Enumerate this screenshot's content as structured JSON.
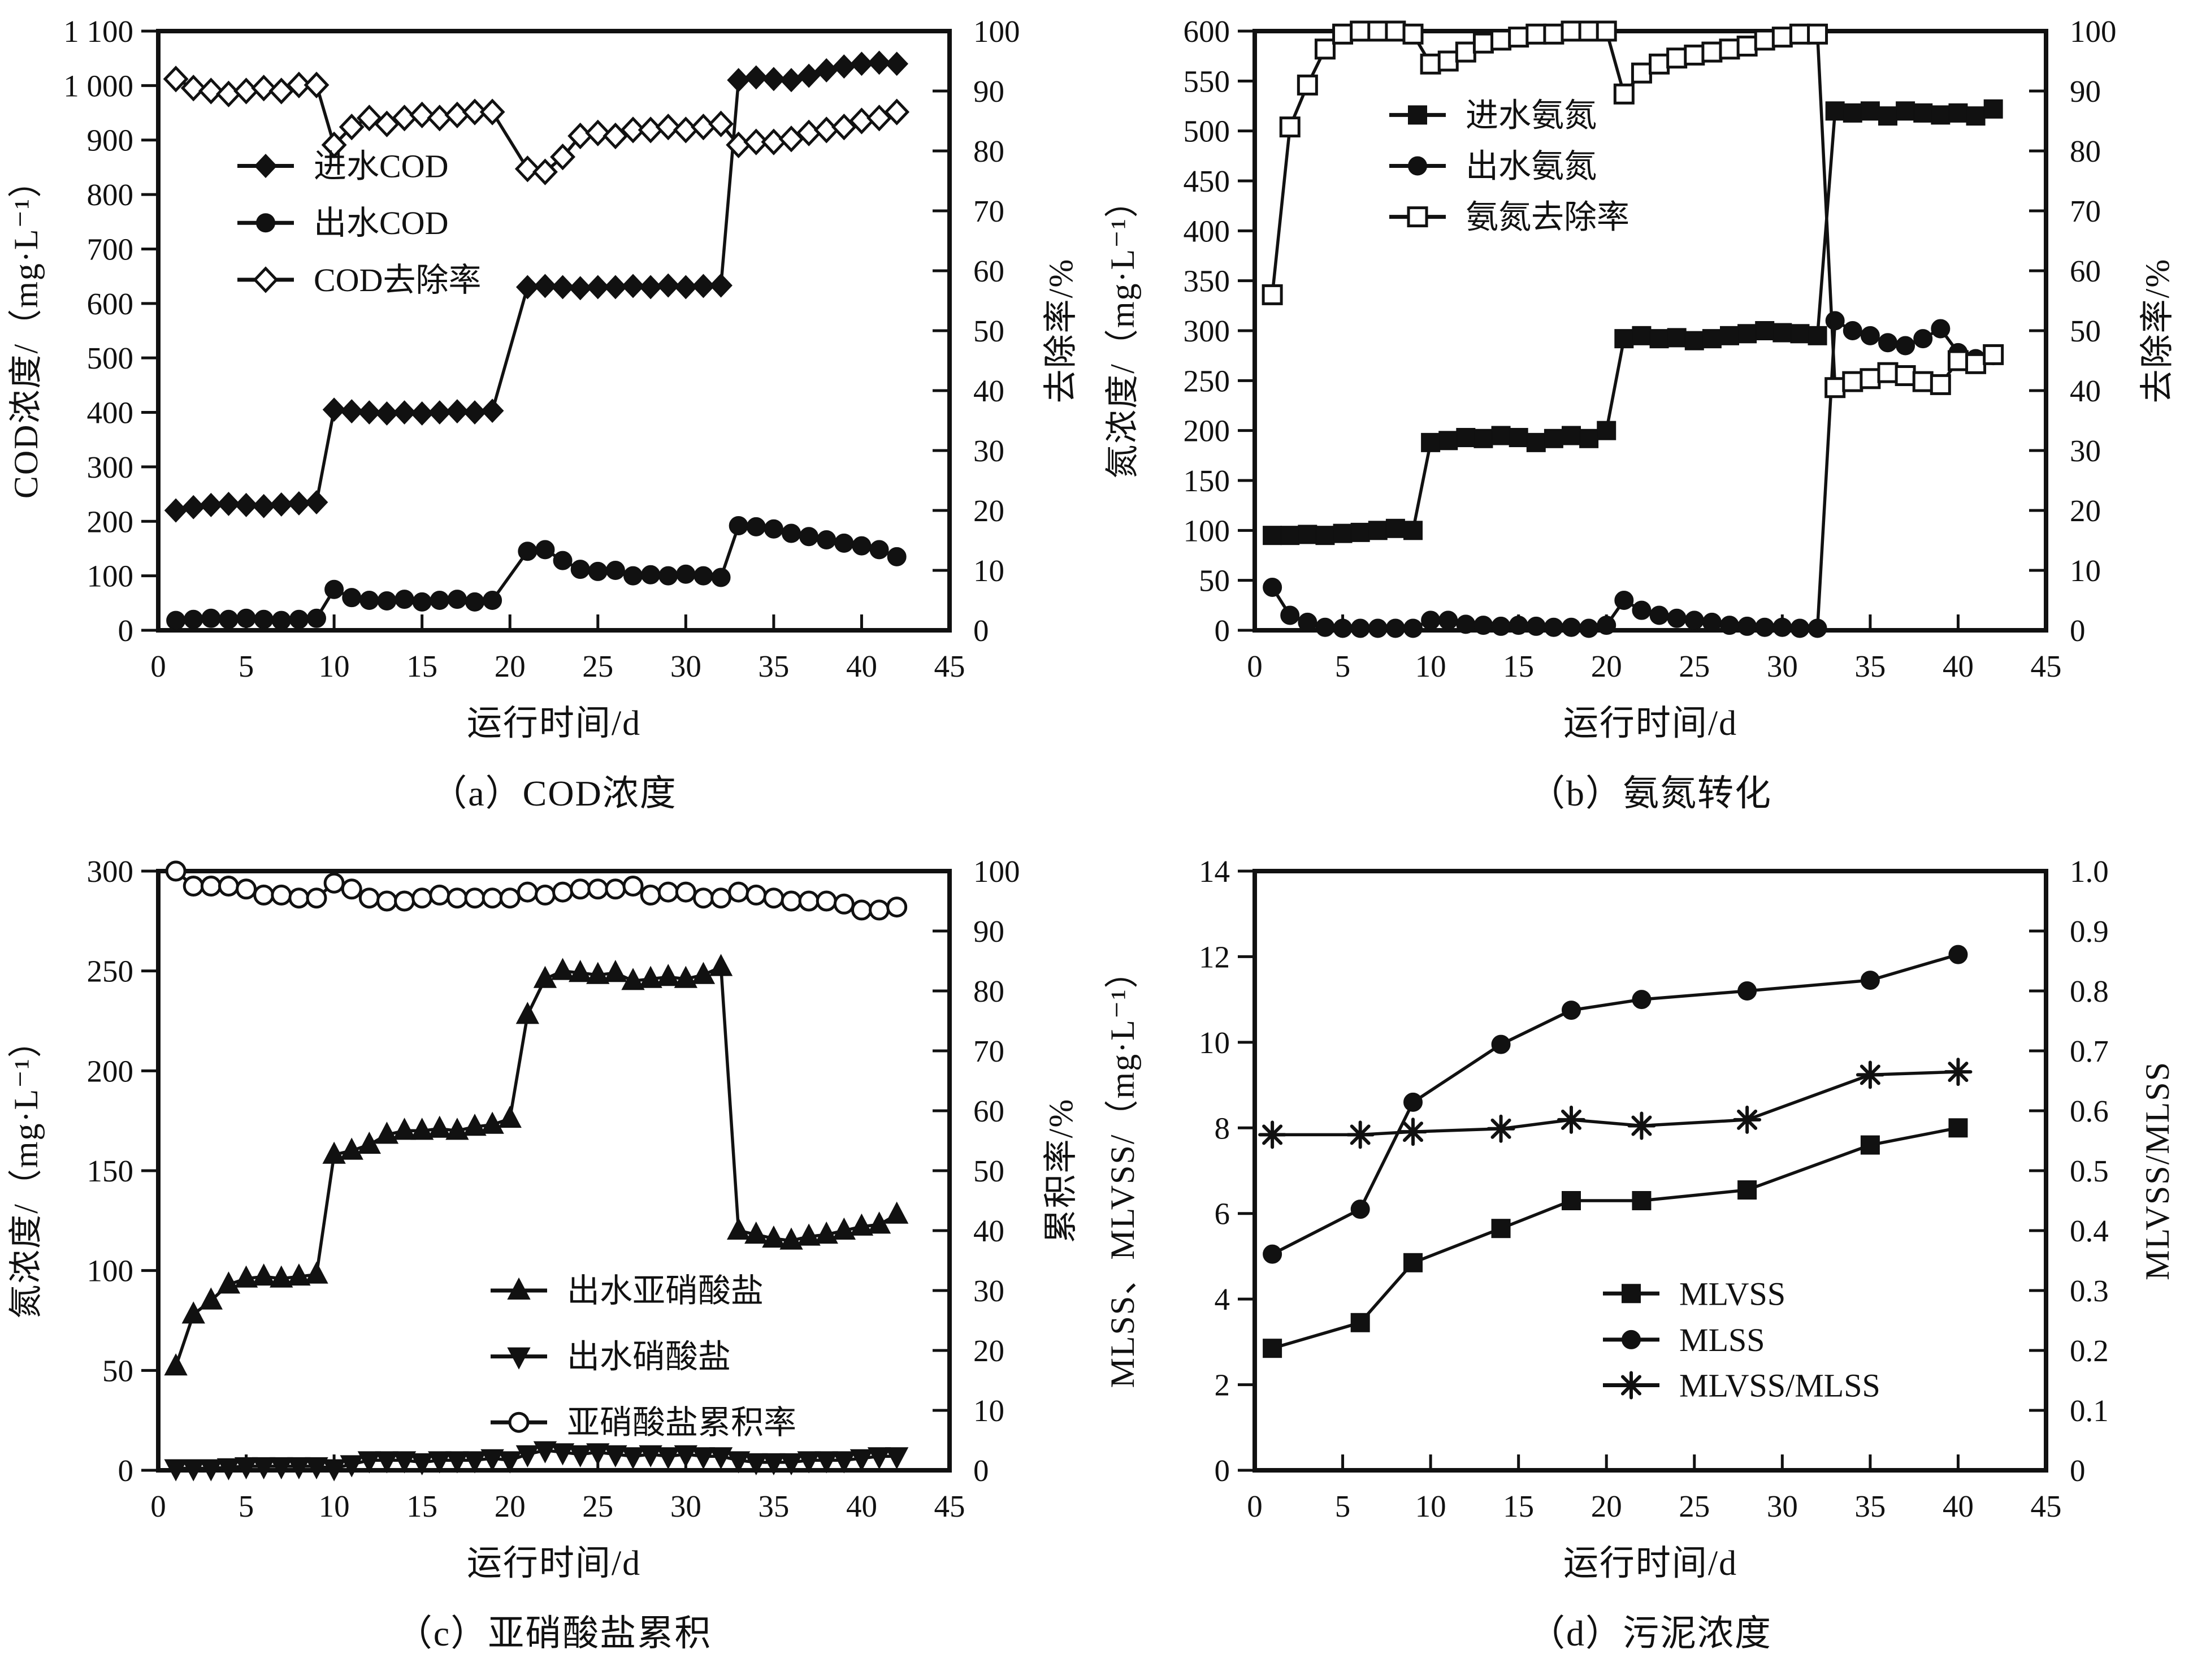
{
  "figure": {
    "background": "#ffffff",
    "ink": "#111111"
  },
  "chart_data": [
    {
      "id": "a",
      "type": "line",
      "caption": "（a）COD浓度",
      "xlabel": "运行时间/d",
      "ylabel_left": "COD浓度/（mg·L⁻¹）",
      "ylabel_right": "去除率/%",
      "x_range": [
        0,
        45
      ],
      "x_ticks": [
        "0",
        "5",
        "10",
        "15",
        "20",
        "25",
        "30",
        "35",
        "40",
        "45"
      ],
      "y_left_range": [
        0,
        1100
      ],
      "y_left_ticks": [
        "0",
        "100",
        "200",
        "300",
        "400",
        "500",
        "600",
        "700",
        "800",
        "900",
        "1 000",
        "1 100"
      ],
      "y_right_range": [
        0,
        100
      ],
      "y_right_ticks": [
        "0",
        "10",
        "20",
        "30",
        "40",
        "50",
        "60",
        "70",
        "80",
        "90",
        "100"
      ],
      "legend": {
        "x": 0.1,
        "rows": [
          0.225,
          0.32,
          0.415
        ]
      },
      "x": [
        1,
        2,
        3,
        4,
        5,
        6,
        7,
        8,
        9,
        10,
        11,
        12,
        13,
        14,
        15,
        16,
        17,
        18,
        19,
        21,
        22,
        23,
        24,
        25,
        26,
        27,
        28,
        29,
        30,
        31,
        32,
        33,
        34,
        35,
        36,
        37,
        38,
        39,
        40,
        41,
        42
      ],
      "series": [
        {
          "name": "进水COD",
          "marker": "diamond",
          "fill": "solid",
          "axis": "left",
          "values": [
            220,
            226,
            230,
            232,
            230,
            228,
            231,
            233,
            235,
            405,
            402,
            400,
            398,
            400,
            398,
            400,
            402,
            400,
            403,
            630,
            632,
            630,
            628,
            630,
            630,
            632,
            630,
            633,
            630,
            632,
            633,
            1010,
            1015,
            1012,
            1010,
            1018,
            1028,
            1035,
            1040,
            1042,
            1040
          ]
        },
        {
          "name": "出水COD",
          "marker": "circle",
          "fill": "solid",
          "axis": "left",
          "values": [
            18,
            20,
            22,
            20,
            22,
            20,
            18,
            20,
            22,
            75,
            60,
            55,
            54,
            57,
            52,
            55,
            57,
            52,
            55,
            145,
            148,
            128,
            112,
            108,
            110,
            100,
            102,
            100,
            103,
            100,
            97,
            192,
            190,
            186,
            178,
            172,
            166,
            160,
            155,
            148,
            135
          ]
        },
        {
          "name": "COD去除率",
          "marker": "diamond",
          "fill": "open",
          "axis": "right",
          "values": [
            92,
            90.5,
            90,
            89.5,
            90,
            90.5,
            90,
            91,
            91,
            81,
            84,
            85.5,
            84.5,
            85.5,
            86,
            85.5,
            86,
            86.5,
            86.5,
            77,
            76.5,
            79,
            82.5,
            83,
            82.5,
            83.5,
            83.5,
            84,
            83.5,
            84,
            84.5,
            81,
            81.5,
            81.5,
            82,
            83,
            83.5,
            84,
            85,
            85.5,
            86.5
          ]
        }
      ]
    },
    {
      "id": "b",
      "type": "line",
      "caption": "（b）氨氮转化",
      "xlabel": "运行时间/d",
      "ylabel_left": "氮浓度/（mg·L⁻¹）",
      "ylabel_right": "去除率/%",
      "x_range": [
        0,
        45
      ],
      "x_ticks": [
        "0",
        "5",
        "10",
        "15",
        "20",
        "25",
        "30",
        "35",
        "40",
        "45"
      ],
      "y_left_range": [
        0,
        600
      ],
      "y_left_ticks": [
        "0",
        "50",
        "100",
        "150",
        "200",
        "250",
        "300",
        "350",
        "400",
        "450",
        "500",
        "550",
        "600"
      ],
      "y_right_range": [
        0,
        100
      ],
      "y_right_ticks": [
        "0",
        "10",
        "20",
        "30",
        "40",
        "50",
        "60",
        "70",
        "80",
        "90",
        "100"
      ],
      "legend": {
        "x": 0.17,
        "rows": [
          0.14,
          0.225,
          0.31
        ]
      },
      "x": [
        1,
        2,
        3,
        4,
        5,
        6,
        7,
        8,
        9,
        10,
        11,
        12,
        13,
        14,
        15,
        16,
        17,
        18,
        19,
        20,
        21,
        22,
        23,
        24,
        25,
        26,
        27,
        28,
        29,
        30,
        31,
        32,
        33,
        34,
        35,
        36,
        37,
        38,
        39,
        40,
        41,
        42
      ],
      "series": [
        {
          "name": "进水氨氮",
          "marker": "square",
          "fill": "solid",
          "axis": "left",
          "values": [
            95,
            95,
            96,
            95,
            97,
            98,
            100,
            102,
            100,
            188,
            190,
            193,
            192,
            195,
            193,
            188,
            192,
            195,
            192,
            200,
            292,
            295,
            292,
            293,
            290,
            292,
            295,
            297,
            300,
            298,
            297,
            295,
            520,
            518,
            520,
            515,
            520,
            518,
            516,
            518,
            515,
            522
          ]
        },
        {
          "name": "出水氨氮",
          "marker": "circle",
          "fill": "solid",
          "axis": "left",
          "values": [
            43,
            15,
            8,
            3,
            2,
            2,
            2,
            2,
            2,
            10,
            10,
            6,
            5,
            4,
            5,
            4,
            3,
            3,
            2,
            5,
            30,
            20,
            15,
            12,
            10,
            8,
            5,
            4,
            3,
            3,
            2,
            2,
            310,
            300,
            295,
            288,
            285,
            292,
            302,
            278,
            272,
            275
          ]
        },
        {
          "name": "氨氮去除率",
          "marker": "square",
          "fill": "open",
          "axis": "right",
          "values": [
            56,
            84,
            91,
            97,
            99.5,
            100,
            100,
            100,
            99.5,
            94.5,
            95,
            96.5,
            98,
            98.5,
            99,
            99.5,
            99.5,
            100,
            100,
            100,
            89.5,
            93,
            94.5,
            95.5,
            96,
            96.5,
            97,
            97.5,
            98.5,
            99,
            99.5,
            99.5,
            40.5,
            41.5,
            42,
            43,
            42.5,
            41.5,
            41,
            45,
            44.5,
            46
          ]
        }
      ]
    },
    {
      "id": "c",
      "type": "line",
      "caption": "（c）亚硝酸盐累积",
      "xlabel": "运行时间/d",
      "ylabel_left": "氮浓度/（mg·L⁻¹）",
      "ylabel_right": "累积率/%",
      "x_range": [
        0,
        45
      ],
      "x_ticks": [
        "0",
        "5",
        "10",
        "15",
        "20",
        "25",
        "30",
        "35",
        "40",
        "45"
      ],
      "y_left_range": [
        0,
        300
      ],
      "y_left_ticks": [
        "0",
        "50",
        "100",
        "150",
        "200",
        "250",
        "300"
      ],
      "y_right_range": [
        0,
        100
      ],
      "y_right_ticks": [
        "0",
        "10",
        "20",
        "30",
        "40",
        "50",
        "60",
        "70",
        "80",
        "90",
        "100"
      ],
      "legend": {
        "x": 0.42,
        "rows": [
          0.7,
          0.81,
          0.92
        ]
      },
      "x": [
        1,
        2,
        3,
        4,
        5,
        6,
        7,
        8,
        9,
        10,
        11,
        12,
        13,
        14,
        15,
        16,
        17,
        18,
        19,
        20,
        21,
        22,
        23,
        24,
        25,
        26,
        27,
        28,
        29,
        30,
        31,
        32,
        33,
        34,
        35,
        36,
        37,
        38,
        39,
        40,
        41,
        42
      ],
      "series": [
        {
          "name": "出水亚硝酸盐",
          "marker": "triangle-up",
          "fill": "solid",
          "axis": "left",
          "values": [
            52,
            78,
            85,
            93,
            96,
            97,
            96,
            97,
            98,
            158,
            160,
            163,
            168,
            170,
            170,
            171,
            170,
            172,
            173,
            176,
            228,
            246,
            250,
            249,
            248,
            249,
            245,
            246,
            247,
            246,
            248,
            252,
            120,
            118,
            116,
            115,
            117,
            118,
            120,
            122,
            123,
            128
          ]
        },
        {
          "name": "出水硝酸盐",
          "marker": "triangle-down",
          "fill": "solid",
          "axis": "left",
          "values": [
            1,
            1,
            1,
            1.5,
            2,
            2,
            2,
            2,
            2,
            1,
            3,
            5,
            5,
            5,
            4,
            5,
            5,
            5,
            6,
            5,
            8,
            10,
            9,
            8,
            9,
            8,
            7,
            8,
            7,
            8,
            7,
            7,
            5,
            4,
            4,
            4,
            5,
            5,
            5,
            6,
            7,
            7
          ]
        },
        {
          "name": "亚硝酸盐累积率",
          "marker": "circle",
          "fill": "open",
          "axis": "right",
          "values": [
            100,
            97.5,
            97.5,
            97.5,
            97,
            96,
            96,
            95.5,
            95.5,
            98,
            97,
            95.5,
            95,
            95,
            95.5,
            96,
            95.5,
            95.5,
            95.5,
            95.5,
            96.5,
            96,
            96.5,
            97,
            97,
            97,
            97.5,
            96,
            96.5,
            96.5,
            95.5,
            95.5,
            96.5,
            96,
            95.5,
            95,
            95,
            95,
            94.5,
            93.5,
            93.5,
            94
          ]
        }
      ]
    },
    {
      "id": "d",
      "type": "line",
      "caption": "（d）污泥浓度",
      "xlabel": "运行时间/d",
      "ylabel_left": "MLSS、MLVSS/（mg·L⁻¹）",
      "ylabel_right": "MLVSS/MLSS",
      "x_range": [
        0,
        45
      ],
      "x_ticks": [
        "0",
        "5",
        "10",
        "15",
        "20",
        "25",
        "30",
        "35",
        "40",
        "45"
      ],
      "y_left_range": [
        0,
        14
      ],
      "y_left_ticks": [
        "0",
        "2",
        "4",
        "6",
        "8",
        "10",
        "12",
        "14"
      ],
      "y_right_range": [
        0,
        1
      ],
      "y_right_ticks": [
        "0",
        "0.1",
        "0.2",
        "0.3",
        "0.4",
        "0.5",
        "0.6",
        "0.7",
        "0.8",
        "0.9",
        "1.0"
      ],
      "legend": {
        "x": 0.44,
        "rows": [
          0.705,
          0.782,
          0.858
        ]
      },
      "x": [
        1,
        6,
        9,
        14,
        18,
        22,
        28,
        35,
        40
      ],
      "series": [
        {
          "name": "MLVSS",
          "marker": "square",
          "fill": "solid",
          "axis": "left",
          "values": [
            2.85,
            3.45,
            4.85,
            5.65,
            6.3,
            6.3,
            6.55,
            7.6,
            8.0
          ]
        },
        {
          "name": "MLSS",
          "marker": "circle",
          "fill": "solid",
          "axis": "left",
          "values": [
            5.05,
            6.1,
            8.6,
            9.95,
            10.75,
            11.0,
            11.2,
            11.45,
            12.05
          ]
        },
        {
          "name": "MLVSS/MLSS",
          "marker": "asterisk",
          "fill": "solid",
          "axis": "right",
          "values": [
            0.56,
            0.56,
            0.565,
            0.57,
            0.585,
            0.575,
            0.585,
            0.66,
            0.665
          ]
        }
      ]
    }
  ]
}
